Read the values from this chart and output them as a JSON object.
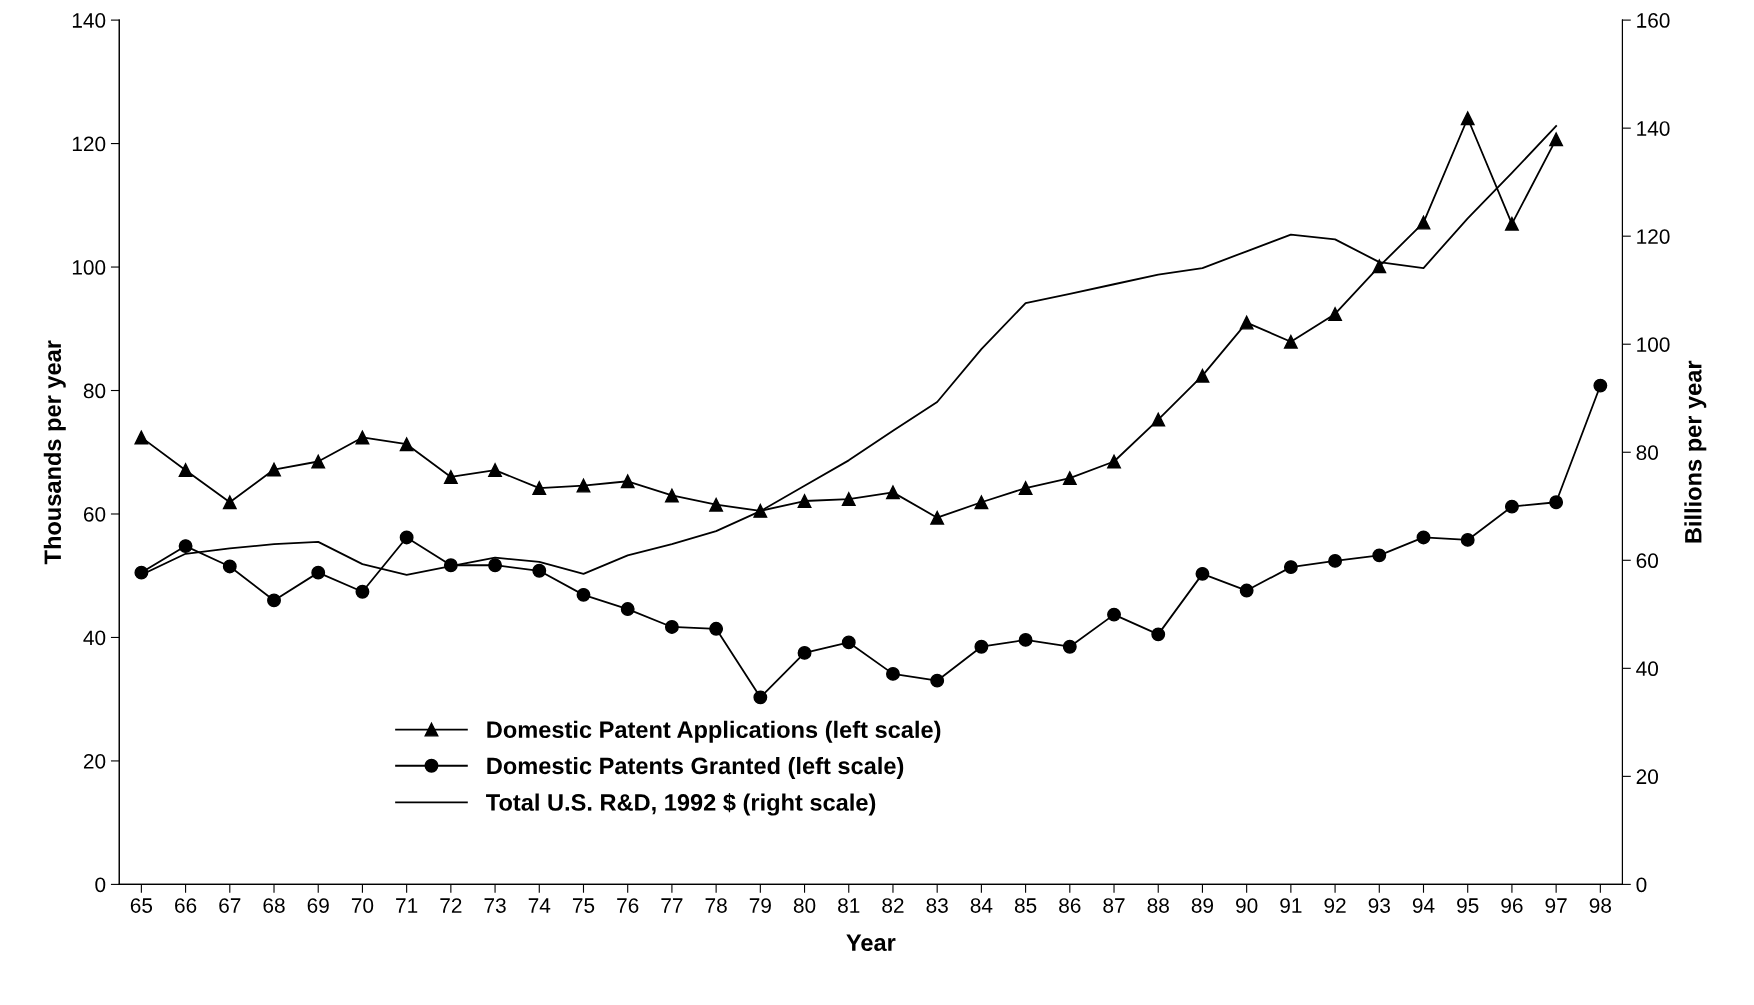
{
  "chart_data": {
    "type": "line",
    "xlabel": "Year",
    "ylabel": "Thousands per year",
    "y2label": "Billions per year",
    "categories": [
      "65",
      "66",
      "67",
      "68",
      "69",
      "70",
      "71",
      "72",
      "73",
      "74",
      "75",
      "76",
      "77",
      "78",
      "79",
      "80",
      "81",
      "82",
      "83",
      "84",
      "85",
      "86",
      "87",
      "88",
      "89",
      "90",
      "91",
      "92",
      "93",
      "94",
      "95",
      "96",
      "97",
      "98"
    ],
    "series": [
      {
        "name": "Domestic Patent Applications (left scale)",
        "color": "#000000",
        "marker": "triangle",
        "values": [
          72.4,
          67.1,
          61.9,
          67.2,
          68.5,
          72.4,
          71.3,
          66.0,
          67.1,
          64.2,
          64.6,
          65.3,
          63.0,
          61.5,
          60.5,
          62.1,
          62.4,
          63.5,
          59.4,
          61.9,
          64.2,
          65.8,
          68.5,
          75.3,
          82.4,
          91.0,
          87.9,
          92.4,
          100.1,
          107.2,
          124.1,
          107.0,
          120.7,
          null
        ]
      },
      {
        "name": "Domestic Patents Granted (left scale)",
        "color": "#000000",
        "marker": "circle",
        "values": [
          50.5,
          54.8,
          51.5,
          46.0,
          50.5,
          47.4,
          56.2,
          51.7,
          51.7,
          50.8,
          46.9,
          44.6,
          41.7,
          41.4,
          30.3,
          37.5,
          39.2,
          34.1,
          33.0,
          38.5,
          39.6,
          38.5,
          43.7,
          40.5,
          50.3,
          47.6,
          51.4,
          52.4,
          53.3,
          56.2,
          55.8,
          61.2,
          61.9,
          80.8
        ]
      },
      {
        "name": "Total U.S. R&D, 1992 $ (right scale)",
        "color": "#000000",
        "marker": "none",
        "axis": "y2",
        "values": [
          57.3,
          61.2,
          62.2,
          63.0,
          63.4,
          59.3,
          57.3,
          58.9,
          60.5,
          59.7,
          57.5,
          60.9,
          63.0,
          65.4,
          69.1,
          73.8,
          78.5,
          84.0,
          89.3,
          99.1,
          107.6,
          109.3,
          111.1,
          112.9,
          114.1,
          117.2,
          120.3,
          119.4,
          115.2,
          114.1,
          123.3,
          131.7,
          140.4,
          null
        ]
      }
    ],
    "ylim": [
      0,
      140
    ],
    "yticks": [
      0,
      20,
      40,
      60,
      80,
      100,
      120,
      140
    ],
    "y2lim": [
      0,
      160
    ],
    "y2ticks": [
      0,
      20,
      40,
      60,
      80,
      100,
      120,
      140,
      160
    ],
    "grid": false,
    "legend": "bottom",
    "line_style": "solid"
  }
}
